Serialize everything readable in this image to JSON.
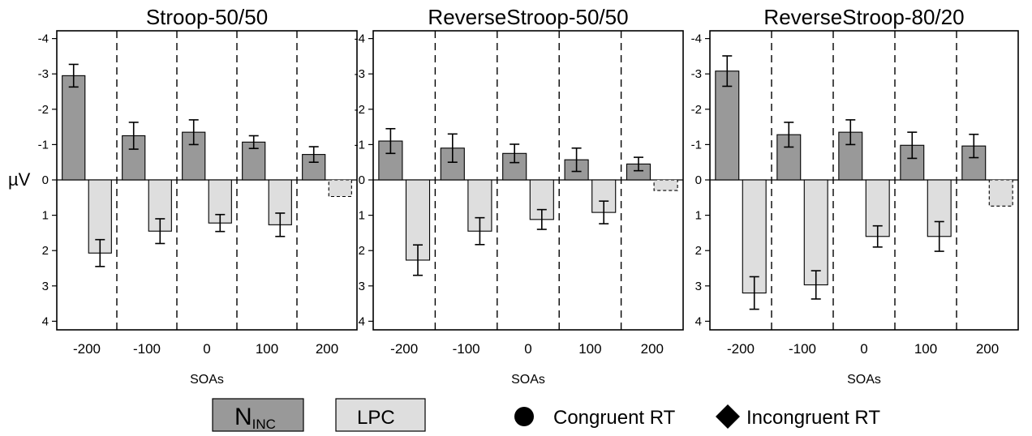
{
  "chart_data": [
    {
      "type": "bar",
      "title": "Stroop-50/50",
      "xlabel": "SOAs",
      "ylabel": "µV",
      "categories": [
        "-200",
        "-100",
        "0",
        "100",
        "200"
      ],
      "ylim": [
        -4,
        4
      ],
      "y_inverted": true,
      "yticks": [
        "-4",
        "-3",
        "-2",
        "-1",
        "0",
        "1",
        "2",
        "3",
        "4"
      ],
      "series": [
        {
          "name": "N_INC",
          "values": [
            -2.95,
            -1.25,
            -1.35,
            -1.07,
            -0.72
          ],
          "errors": [
            0.32,
            0.38,
            0.35,
            0.18,
            0.22
          ]
        },
        {
          "name": "LPC",
          "values": [
            2.07,
            1.45,
            1.22,
            1.27,
            0.47
          ],
          "errors": [
            0.38,
            0.35,
            0.24,
            0.33,
            null
          ]
        }
      ],
      "dashed_categories": [
        "200"
      ]
    },
    {
      "type": "bar",
      "title": "ReverseStroop-50/50",
      "xlabel": "SOAs",
      "ylabel": "",
      "categories": [
        "-200",
        "-100",
        "0",
        "100",
        "200"
      ],
      "ylim": [
        -4,
        4
      ],
      "y_inverted": true,
      "yticks": [
        "-4",
        "-3",
        "-2",
        "-1",
        "0",
        "1",
        "2",
        "3",
        "4"
      ],
      "series": [
        {
          "name": "N_INC",
          "values": [
            -1.1,
            -0.9,
            -0.75,
            -0.57,
            -0.45
          ],
          "errors": [
            0.35,
            0.4,
            0.26,
            0.33,
            0.19
          ]
        },
        {
          "name": "LPC",
          "values": [
            2.27,
            1.45,
            1.12,
            0.92,
            0.3
          ],
          "errors": [
            0.43,
            0.38,
            0.28,
            0.32,
            null
          ]
        }
      ],
      "dashed_categories": [
        "200"
      ]
    },
    {
      "type": "bar",
      "title": "ReverseStroop-80/20",
      "xlabel": "SOAs",
      "ylabel": "",
      "categories": [
        "-200",
        "-100",
        "0",
        "100",
        "200"
      ],
      "ylim": [
        -4,
        4
      ],
      "y_inverted": true,
      "yticks": [
        "-4",
        "-3",
        "-2",
        "-1",
        "0",
        "1",
        "2",
        "3",
        "4"
      ],
      "series": [
        {
          "name": "N_INC",
          "values": [
            -3.08,
            -1.28,
            -1.35,
            -0.98,
            -0.96
          ],
          "errors": [
            0.43,
            0.35,
            0.35,
            0.37,
            0.33
          ]
        },
        {
          "name": "LPC",
          "values": [
            3.2,
            2.97,
            1.6,
            1.6,
            0.74
          ],
          "errors": [
            0.46,
            0.4,
            0.3,
            0.42,
            null
          ]
        }
      ],
      "dashed_categories": [
        "200"
      ]
    }
  ],
  "legend": {
    "placement": "bottom",
    "bar_entries": [
      {
        "label": "N",
        "subscript": "INC",
        "color": "#999999"
      },
      {
        "label": "LPC",
        "subscript": "",
        "color": "#dedede"
      }
    ],
    "marker_entries": [
      {
        "symbol": "circle",
        "label": "Congruent RT"
      },
      {
        "symbol": "diamond",
        "label": "Incongruent RT"
      }
    ]
  },
  "colors": {
    "ninc": "#999999",
    "lpc": "#dedede",
    "axis": "#000000"
  }
}
